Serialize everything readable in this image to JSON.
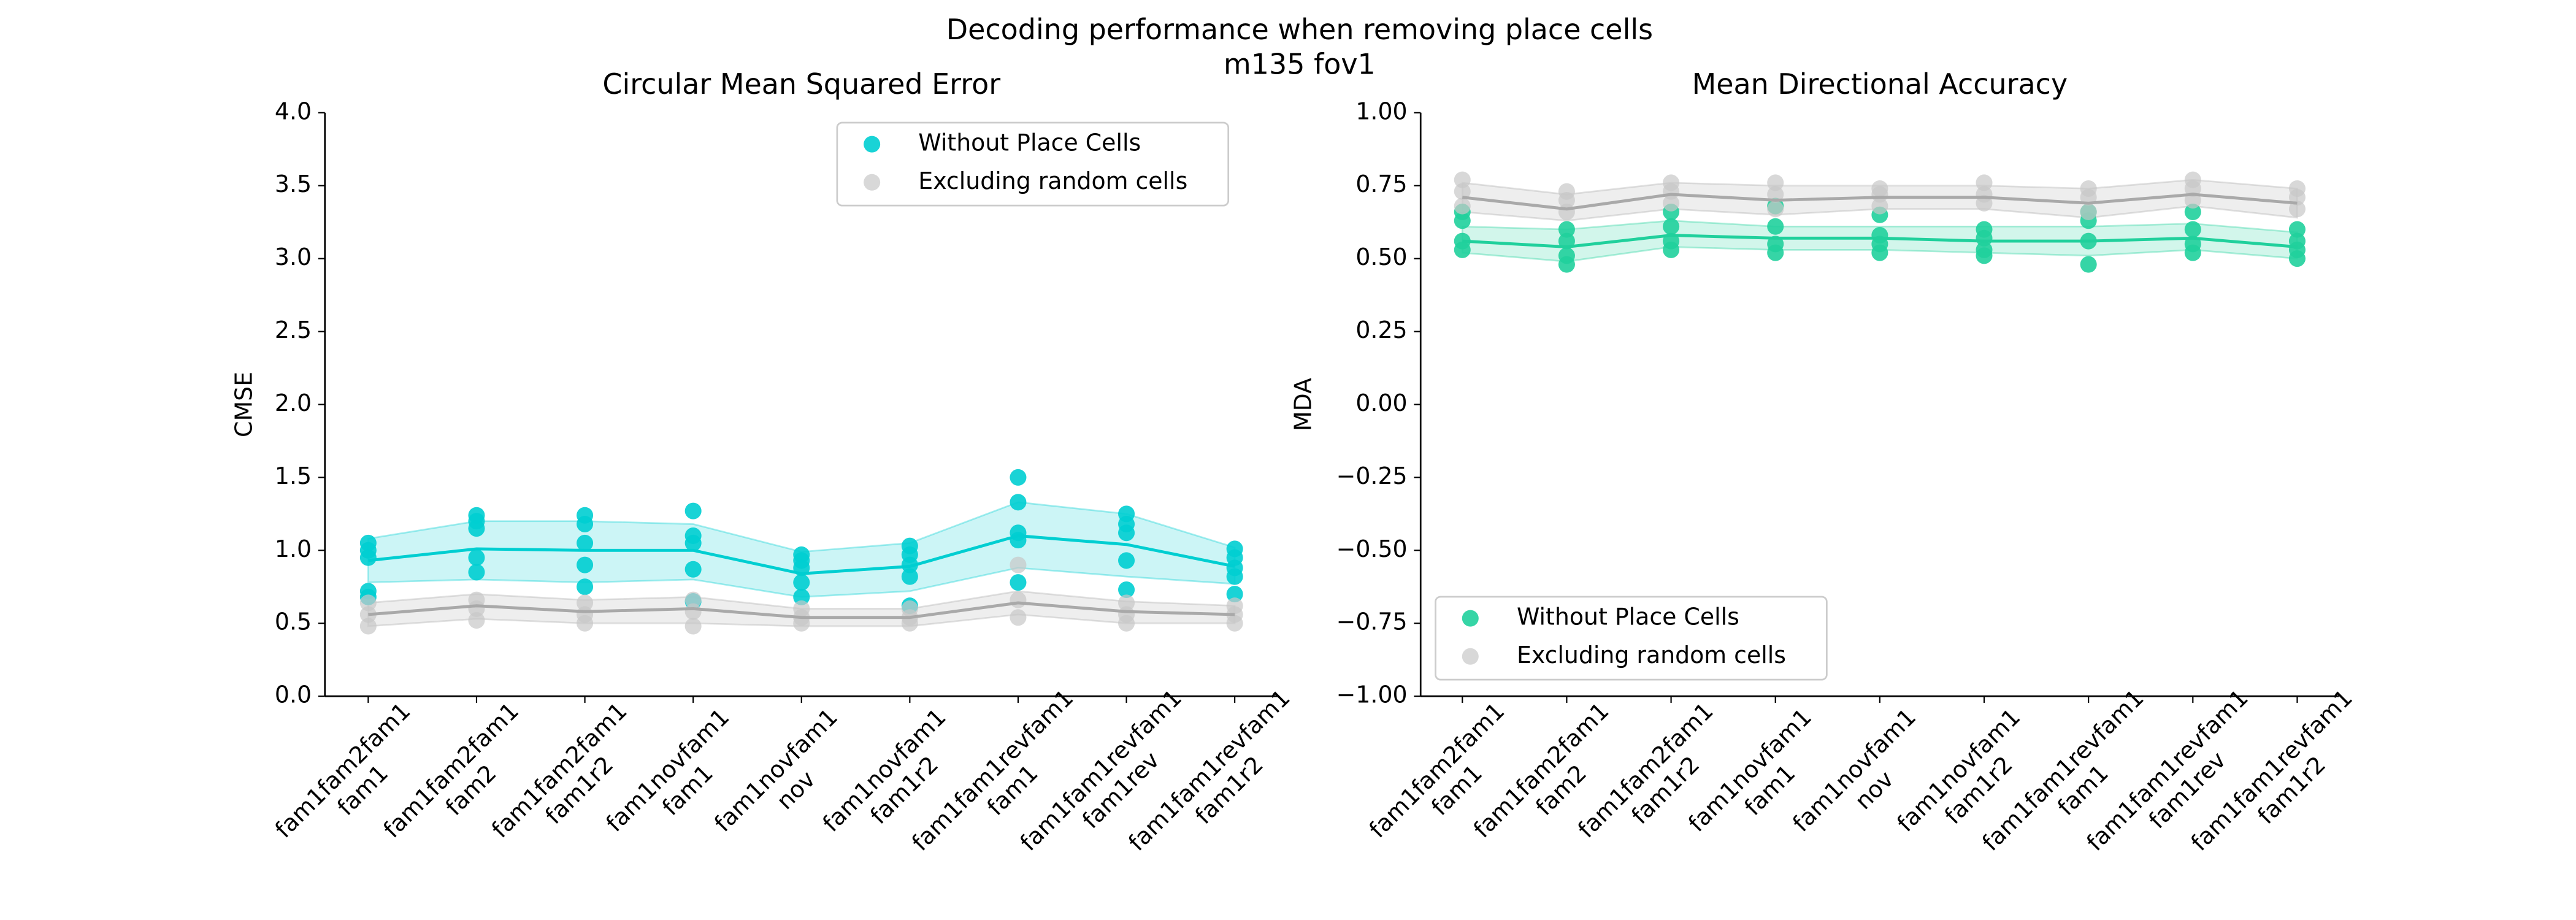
{
  "title": "Decoding performance when removing place cells",
  "subtitle": "m135 fov1",
  "chart_data": [
    {
      "type": "line",
      "title": "Circular Mean Squared Error",
      "ylabel": "CMSE",
      "categories": [
        "fam1fam2fam1\nfam1",
        "fam1fam2fam1\nfam2",
        "fam1fam2fam1\nfam1r2",
        "fam1novfam1\nfam1",
        "fam1novfam1\nnov",
        "fam1novfam1\nfam1r2",
        "fam1fam1revfam1\nfam1",
        "fam1fam1revfam1\nfam1rev",
        "fam1fam1revfam1\nfam1r2"
      ],
      "label_colors": [
        "#e6550d",
        "#f47f1f",
        "#f5b400",
        "#137a2a",
        "#7cb82f",
        "#c0d52a",
        "#6a1fd6",
        "#b020e0",
        "#e020e0"
      ],
      "ylim": [
        0,
        4
      ],
      "yticks": [
        {
          "value": 0,
          "label": "0.0"
        },
        {
          "value": 0.5,
          "label": "0.5"
        },
        {
          "value": 1,
          "label": "1.0"
        },
        {
          "value": 1.5,
          "label": "1.5"
        },
        {
          "value": 2,
          "label": "2.0"
        },
        {
          "value": 2.5,
          "label": "2.5"
        },
        {
          "value": 3,
          "label": "3.0"
        },
        {
          "value": 3.5,
          "label": "3.5"
        },
        {
          "value": 4,
          "label": "4.0"
        }
      ],
      "legend": "upper right",
      "series": [
        {
          "name": "Without Place Cells",
          "color": "#00ced1",
          "values": [
            0.93,
            1.01,
            1.0,
            1.0,
            0.84,
            0.89,
            1.1,
            1.04,
            0.89
          ],
          "lower": [
            0.78,
            0.8,
            0.78,
            0.8,
            0.68,
            0.72,
            0.88,
            0.82,
            0.77
          ],
          "upper": [
            1.08,
            1.2,
            1.2,
            1.18,
            0.99,
            1.05,
            1.33,
            1.25,
            1.02
          ],
          "points": [
            [
              1.05,
              1.0,
              0.95,
              0.72,
              0.68
            ],
            [
              1.24,
              1.2,
              1.15,
              0.95,
              0.85
            ],
            [
              1.24,
              1.18,
              1.05,
              0.9,
              0.75
            ],
            [
              1.27,
              1.1,
              1.05,
              0.87,
              0.65
            ],
            [
              0.97,
              0.93,
              0.88,
              0.78,
              0.68
            ],
            [
              1.03,
              0.97,
              0.9,
              0.82,
              0.62
            ],
            [
              1.5,
              1.33,
              1.12,
              1.07,
              0.78
            ],
            [
              1.25,
              1.18,
              1.12,
              0.93,
              0.73
            ],
            [
              1.01,
              0.95,
              0.88,
              0.82,
              0.7
            ]
          ]
        },
        {
          "name": "Excluding random cells",
          "color": "#a9a9a9",
          "values": [
            0.56,
            0.62,
            0.58,
            0.6,
            0.54,
            0.54,
            0.64,
            0.58,
            0.56
          ],
          "lower": [
            0.48,
            0.53,
            0.5,
            0.5,
            0.48,
            0.48,
            0.56,
            0.5,
            0.5
          ],
          "upper": [
            0.64,
            0.7,
            0.66,
            0.68,
            0.6,
            0.6,
            0.72,
            0.65,
            0.62
          ],
          "points": [
            [
              0.64,
              0.56,
              0.48
            ],
            [
              0.66,
              0.6,
              0.52
            ],
            [
              0.64,
              0.56,
              0.5
            ],
            [
              0.66,
              0.58,
              0.48
            ],
            [
              0.6,
              0.54,
              0.5
            ],
            [
              0.6,
              0.54,
              0.5
            ],
            [
              0.9,
              0.66,
              0.54
            ],
            [
              0.64,
              0.56,
              0.5
            ],
            [
              0.62,
              0.56,
              0.5
            ]
          ]
        }
      ]
    },
    {
      "type": "line",
      "title": "Mean Directional Accuracy",
      "ylabel": "MDA",
      "categories": [
        "fam1fam2fam1\nfam1",
        "fam1fam2fam1\nfam2",
        "fam1fam2fam1\nfam1r2",
        "fam1novfam1\nfam1",
        "fam1novfam1\nnov",
        "fam1novfam1\nfam1r2",
        "fam1fam1revfam1\nfam1",
        "fam1fam1revfam1\nfam1rev",
        "fam1fam1revfam1\nfam1r2"
      ],
      "label_colors": [
        "#e6550d",
        "#f47f1f",
        "#f5b400",
        "#137a2a",
        "#7cb82f",
        "#c0d52a",
        "#6a1fd6",
        "#b020e0",
        "#e020e0"
      ],
      "ylim": [
        -1,
        1
      ],
      "yticks": [
        {
          "value": -1,
          "label": "−1.00"
        },
        {
          "value": -0.75,
          "label": "−0.75"
        },
        {
          "value": -0.5,
          "label": "−0.50"
        },
        {
          "value": -0.25,
          "label": "−0.25"
        },
        {
          "value": 0,
          "label": "0.00"
        },
        {
          "value": 0.25,
          "label": "0.25"
        },
        {
          "value": 0.5,
          "label": "0.50"
        },
        {
          "value": 0.75,
          "label": "0.75"
        },
        {
          "value": 1,
          "label": "1.00"
        }
      ],
      "legend": "lower left",
      "series": [
        {
          "name": "Without Place Cells",
          "color": "#20d09c",
          "values": [
            0.56,
            0.54,
            0.58,
            0.57,
            0.57,
            0.56,
            0.56,
            0.57,
            0.54
          ],
          "lower": [
            0.52,
            0.49,
            0.54,
            0.53,
            0.53,
            0.52,
            0.51,
            0.53,
            0.5
          ],
          "upper": [
            0.61,
            0.6,
            0.63,
            0.61,
            0.61,
            0.61,
            0.61,
            0.62,
            0.59
          ],
          "points": [
            [
              0.66,
              0.63,
              0.56,
              0.53
            ],
            [
              0.6,
              0.56,
              0.51,
              0.48
            ],
            [
              0.66,
              0.61,
              0.56,
              0.53
            ],
            [
              0.68,
              0.61,
              0.55,
              0.52
            ],
            [
              0.65,
              0.58,
              0.55,
              0.52
            ],
            [
              0.6,
              0.57,
              0.53,
              0.51
            ],
            [
              0.66,
              0.63,
              0.56,
              0.48
            ],
            [
              0.66,
              0.6,
              0.55,
              0.52
            ],
            [
              0.6,
              0.56,
              0.53,
              0.5
            ]
          ]
        },
        {
          "name": "Excluding random cells",
          "color": "#a9a9a9",
          "values": [
            0.71,
            0.67,
            0.72,
            0.7,
            0.71,
            0.71,
            0.69,
            0.72,
            0.69
          ],
          "lower": [
            0.66,
            0.63,
            0.67,
            0.65,
            0.67,
            0.67,
            0.64,
            0.68,
            0.64
          ],
          "upper": [
            0.76,
            0.72,
            0.76,
            0.75,
            0.75,
            0.75,
            0.74,
            0.77,
            0.74
          ],
          "points": [
            [
              0.77,
              0.73,
              0.68
            ],
            [
              0.73,
              0.7,
              0.66
            ],
            [
              0.76,
              0.73,
              0.69
            ],
            [
              0.76,
              0.72,
              0.67
            ],
            [
              0.74,
              0.72,
              0.68
            ],
            [
              0.76,
              0.72,
              0.69
            ],
            [
              0.74,
              0.71,
              0.66
            ],
            [
              0.77,
              0.74,
              0.7
            ],
            [
              0.74,
              0.71,
              0.67
            ]
          ]
        }
      ]
    }
  ]
}
